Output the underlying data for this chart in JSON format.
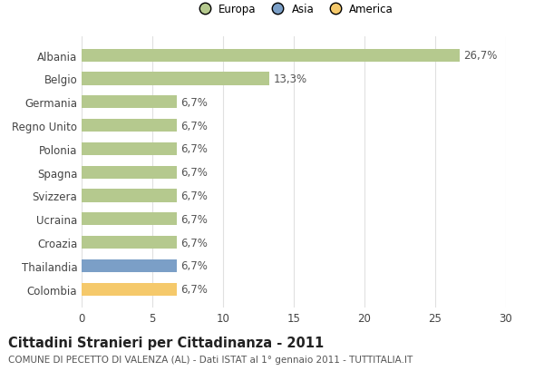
{
  "categories": [
    "Colombia",
    "Thailandia",
    "Croazia",
    "Ucraina",
    "Svizzera",
    "Spagna",
    "Polonia",
    "Regno Unito",
    "Germania",
    "Belgio",
    "Albania"
  ],
  "values": [
    6.7,
    6.7,
    6.7,
    6.7,
    6.7,
    6.7,
    6.7,
    6.7,
    6.7,
    13.3,
    26.7
  ],
  "bar_colors": [
    "#f5c96b",
    "#7b9fc7",
    "#b5c98e",
    "#b5c98e",
    "#b5c98e",
    "#b5c98e",
    "#b5c98e",
    "#b5c98e",
    "#b5c98e",
    "#b5c98e",
    "#b5c98e"
  ],
  "labels": [
    "6,7%",
    "6,7%",
    "6,7%",
    "6,7%",
    "6,7%",
    "6,7%",
    "6,7%",
    "6,7%",
    "6,7%",
    "13,3%",
    "26,7%"
  ],
  "xlim": [
    0,
    30
  ],
  "xticks": [
    0,
    5,
    10,
    15,
    20,
    25,
    30
  ],
  "title": "Cittadini Stranieri per Cittadinanza - 2011",
  "subtitle": "COMUNE DI PECETTO DI VALENZA (AL) - Dati ISTAT al 1° gennaio 2011 - TUTTITALIA.IT",
  "legend_labels": [
    "Europa",
    "Asia",
    "America"
  ],
  "legend_colors": [
    "#b5c98e",
    "#7b9fc7",
    "#f5c96b"
  ],
  "background_color": "#ffffff",
  "grid_color": "#e0e0e0",
  "bar_height": 0.55,
  "label_fontsize": 8.5,
  "tick_fontsize": 8.5,
  "title_fontsize": 10.5,
  "subtitle_fontsize": 7.5
}
